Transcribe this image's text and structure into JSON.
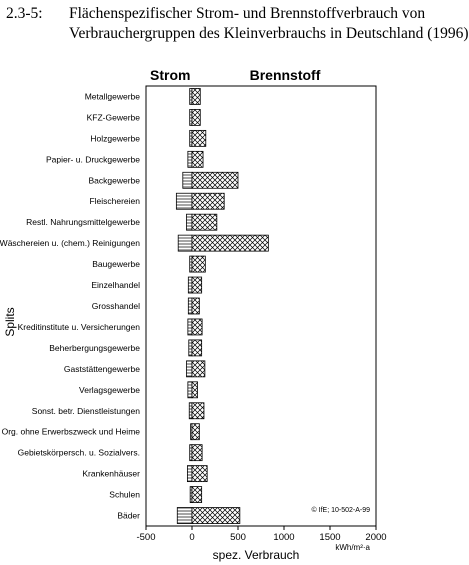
{
  "caption": {
    "number": "2.3-5:",
    "line1": "Flächenspezifischer Strom- und Brennstoffverbrauch von",
    "line2": "Verbrauchergruppen des Kleinverbrauchs in Deutschland (1996)"
  },
  "chart_data": {
    "type": "bar",
    "orientation": "horizontal",
    "categories": [
      "Metallgewerbe",
      "KFZ-Gewerbe",
      "Holzgewerbe",
      "Papier- u. Druckgewerbe",
      "Backgewerbe",
      "Fleischereien",
      "Restl. Nahrungsmittelgewerbe",
      "Wäschereien u. (chem.) Reinigungen",
      "Baugewerbe",
      "Einzelhandel",
      "Grosshandel",
      "Kreditinstitute u. Versicherungen",
      "Beherbergungsgewerbe",
      "Gaststättengewerbe",
      "Verlagsgewerbe",
      "Sonst. betr. Dienstleistungen",
      "Org. ohne Erwerbszweck und Heime",
      "Gebietskörpersch. u. Sozialvers.",
      "Krankenhäuser",
      "Schulen",
      "Bäder"
    ],
    "series": [
      {
        "name": "Strom",
        "pattern": "horizontal-lines",
        "values": [
          -25,
          -25,
          -25,
          -45,
          -100,
          -170,
          -60,
          -150,
          -25,
          -40,
          -40,
          -45,
          -35,
          -60,
          -45,
          -30,
          -15,
          -25,
          -50,
          -20,
          -160
        ]
      },
      {
        "name": "Brennstoff",
        "pattern": "crosshatch",
        "values": [
          90,
          90,
          150,
          120,
          500,
          350,
          270,
          830,
          145,
          105,
          80,
          110,
          105,
          140,
          60,
          130,
          80,
          110,
          165,
          105,
          520
        ]
      }
    ],
    "xlim": [
      -500,
      2000
    ],
    "xticks": [
      -500,
      0,
      500,
      1000,
      1500,
      2000
    ],
    "xlabel": "spez. Verbrauch",
    "xunit": "kWh/m²·a",
    "ylabel": "Splits",
    "header_left": "Strom",
    "header_right": "Brennstoff",
    "annotation": "© IfE; 10-502-A-99",
    "grid": false
  }
}
